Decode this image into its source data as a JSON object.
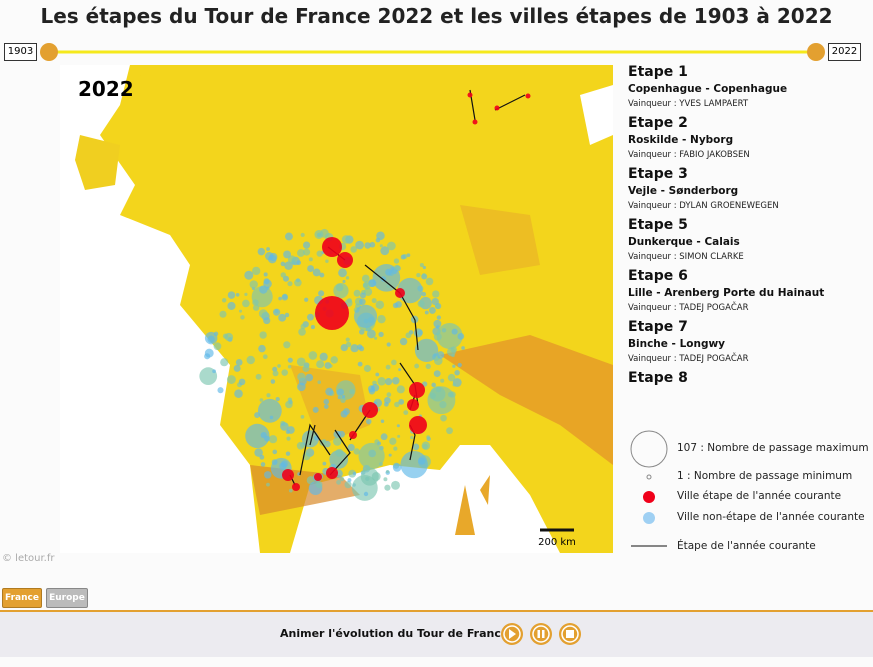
{
  "header": {
    "title": "Les étapes du Tour de France 2022 et les villes étapes de 1903 à 2022"
  },
  "slider": {
    "start": "1903",
    "end": "2022"
  },
  "map": {
    "year": "2022",
    "scale": "200 km",
    "credit": "© letour.fr"
  },
  "stages": [
    {
      "label": "Etape 1",
      "route": "Copenhague - Copenhague",
      "winner": "Vainqueur : YVES LAMPAERT"
    },
    {
      "label": "Etape 2",
      "route": "Roskilde - Nyborg",
      "winner": "Vainqueur : FABIO JAKOBSEN"
    },
    {
      "label": "Etape 3",
      "route": "Vejle - Sønderborg",
      "winner": "Vainqueur : DYLAN GROENEWEGEN"
    },
    {
      "label": "Etape 5",
      "route": "Dunkerque - Calais",
      "winner": "Vainqueur : SIMON CLARKE"
    },
    {
      "label": "Etape 6",
      "route": "Lille - Arenberg Porte du Hainaut",
      "winner": "Vainqueur : TADEJ POGAČAR"
    },
    {
      "label": "Etape 7",
      "route": "Binche - Longwy",
      "winner": "Vainqueur : TADEJ POGAČAR"
    },
    {
      "label": "Etape 8"
    }
  ],
  "legend": {
    "max": "107 : Nombre de passage maximum",
    "min": "1 : Nombre de passage minimum",
    "stage_city": "Ville étape de l'année courante",
    "other_city": "Ville non-étape de l'année courante",
    "stage_line": "Étape de l'année courante"
  },
  "tabs": [
    "France",
    "Europe"
  ],
  "controls": {
    "label": "Animer l'évolution du Tour de France"
  }
}
